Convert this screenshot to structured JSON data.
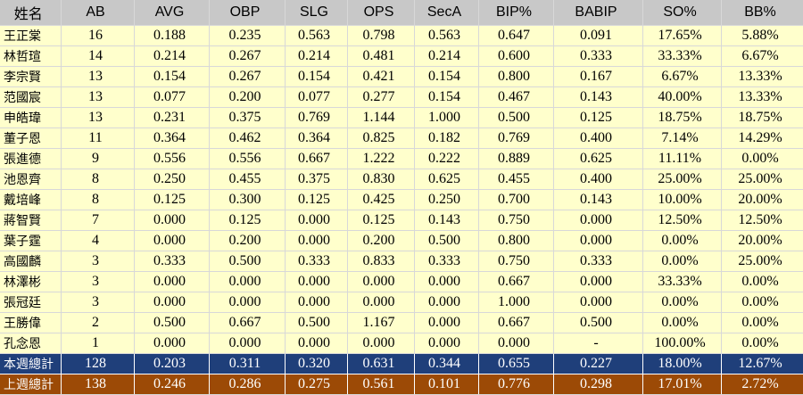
{
  "chart_data": {
    "type": "table",
    "columns": [
      "姓名",
      "AB",
      "AVG",
      "OBP",
      "SLG",
      "OPS",
      "SecA",
      "BIP%",
      "BABIP",
      "SO%",
      "BB%"
    ],
    "rows": [
      [
        "王正棠",
        "16",
        "0.188",
        "0.235",
        "0.563",
        "0.798",
        "0.563",
        "0.647",
        "0.091",
        "17.65%",
        "5.88%"
      ],
      [
        "林哲瑄",
        "14",
        "0.214",
        "0.267",
        "0.214",
        "0.481",
        "0.214",
        "0.600",
        "0.333",
        "33.33%",
        "6.67%"
      ],
      [
        "李宗賢",
        "13",
        "0.154",
        "0.267",
        "0.154",
        "0.421",
        "0.154",
        "0.800",
        "0.167",
        "6.67%",
        "13.33%"
      ],
      [
        "范國宸",
        "13",
        "0.077",
        "0.200",
        "0.077",
        "0.277",
        "0.154",
        "0.467",
        "0.143",
        "40.00%",
        "13.33%"
      ],
      [
        "申皓瑋",
        "13",
        "0.231",
        "0.375",
        "0.769",
        "1.144",
        "1.000",
        "0.500",
        "0.125",
        "18.75%",
        "18.75%"
      ],
      [
        "董子恩",
        "11",
        "0.364",
        "0.462",
        "0.364",
        "0.825",
        "0.182",
        "0.769",
        "0.400",
        "7.14%",
        "14.29%"
      ],
      [
        "張進德",
        "9",
        "0.556",
        "0.556",
        "0.667",
        "1.222",
        "0.222",
        "0.889",
        "0.625",
        "11.11%",
        "0.00%"
      ],
      [
        "池恩齊",
        "8",
        "0.250",
        "0.455",
        "0.375",
        "0.830",
        "0.625",
        "0.455",
        "0.400",
        "25.00%",
        "25.00%"
      ],
      [
        "戴培峰",
        "8",
        "0.125",
        "0.300",
        "0.125",
        "0.425",
        "0.250",
        "0.700",
        "0.143",
        "10.00%",
        "20.00%"
      ],
      [
        "蔣智賢",
        "7",
        "0.000",
        "0.125",
        "0.000",
        "0.125",
        "0.143",
        "0.750",
        "0.000",
        "12.50%",
        "12.50%"
      ],
      [
        "葉子霆",
        "4",
        "0.000",
        "0.200",
        "0.000",
        "0.200",
        "0.500",
        "0.800",
        "0.000",
        "0.00%",
        "20.00%"
      ],
      [
        "高國麟",
        "3",
        "0.333",
        "0.500",
        "0.333",
        "0.833",
        "0.333",
        "0.750",
        "0.333",
        "0.00%",
        "25.00%"
      ],
      [
        "林澤彬",
        "3",
        "0.000",
        "0.000",
        "0.000",
        "0.000",
        "0.000",
        "0.667",
        "0.000",
        "33.33%",
        "0.00%"
      ],
      [
        "張冠廷",
        "3",
        "0.000",
        "0.000",
        "0.000",
        "0.000",
        "0.000",
        "1.000",
        "0.000",
        "0.00%",
        "0.00%"
      ],
      [
        "王勝偉",
        "2",
        "0.500",
        "0.667",
        "0.500",
        "1.167",
        "0.000",
        "0.667",
        "0.500",
        "0.00%",
        "0.00%"
      ],
      [
        "孔念恩",
        "1",
        "0.000",
        "0.000",
        "0.000",
        "0.000",
        "0.000",
        "0.000",
        "-",
        "100.00%",
        "0.00%"
      ]
    ],
    "totals": [
      [
        "本週總計",
        "128",
        "0.203",
        "0.311",
        "0.320",
        "0.631",
        "0.344",
        "0.655",
        "0.227",
        "18.00%",
        "12.67%"
      ],
      [
        "上週總計",
        "138",
        "0.246",
        "0.286",
        "0.275",
        "0.561",
        "0.101",
        "0.776",
        "0.298",
        "17.01%",
        "2.72%"
      ]
    ],
    "colors": {
      "header_bg": "#c8c8c8",
      "row_bg": "#ffffcc",
      "this_week_bg": "#1f3f7a",
      "last_week_bg": "#9c4a06"
    }
  }
}
